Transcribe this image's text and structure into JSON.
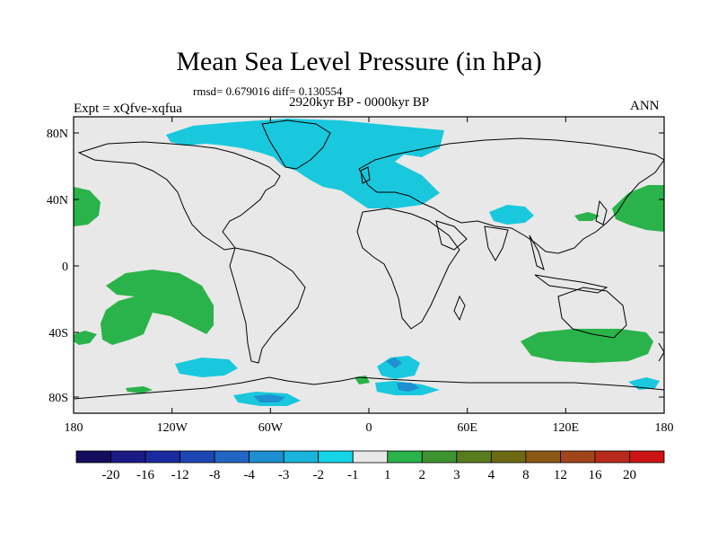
{
  "title": "Mean Sea Level Pressure (in hPa)",
  "stats": "rmsd= 0.679016 diff= 0.130554",
  "period": "2920kyr BP - 0000kyr BP",
  "experiment": "Expt = xQfve-xqfua",
  "season": "ANN",
  "axes": {
    "lat_ticks": [
      "80N",
      "40N",
      "0",
      "40S",
      "80S"
    ],
    "lon_ticks": [
      "180",
      "120W",
      "60W",
      "0",
      "60E",
      "120E",
      "180"
    ]
  },
  "colorbar": {
    "colors": [
      "#160c5e",
      "#1a1a86",
      "#1a2aa0",
      "#1d45b4",
      "#2166c4",
      "#1e8fd0",
      "#19b4dc",
      "#14d4e6",
      "#e8e8e8",
      "#2ab34a",
      "#3e9430",
      "#567c1e",
      "#6e6a14",
      "#8a5814",
      "#a0441a",
      "#b82a1c",
      "#cc1414"
    ],
    "labels": [
      "-20",
      "-16",
      "-12",
      "-8",
      "-4",
      "-3",
      "-2",
      "-1",
      "1",
      "2",
      "3",
      "4",
      "8",
      "12",
      "16",
      "20"
    ]
  },
  "colors": {
    "background_land_sea": "#e8e8e8",
    "negative_anomaly": "#19c8dc",
    "strong_negative": "#1e8fd0",
    "positive_anomaly": "#2ab34a"
  }
}
